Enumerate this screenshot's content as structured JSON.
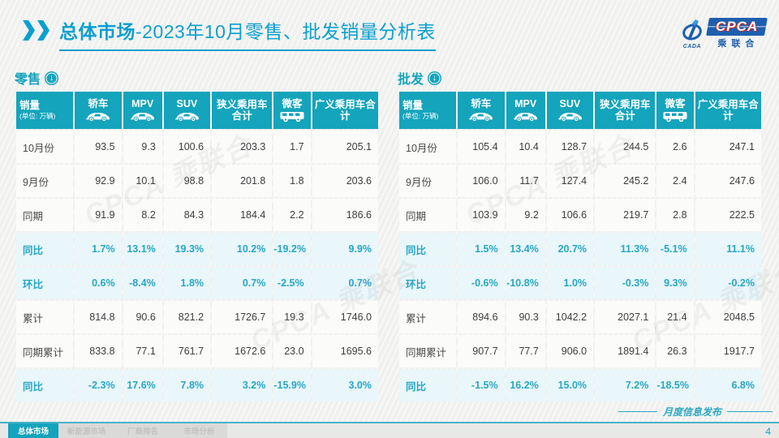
{
  "header": {
    "title_bold": "总体市场",
    "title_rest": "-2023年10月零售、批发销量分析表",
    "logo": {
      "cpca": "CPCA",
      "cada": "CADA",
      "sub": "乘联合"
    }
  },
  "watermark": "CPCA 乘联合",
  "chart_data": [
    {
      "type": "table",
      "title": "零售",
      "unit_note": "(单位: 万辆)",
      "columns": [
        {
          "label": "销量",
          "note": "(单位: 万辆)"
        },
        {
          "label": "轿车",
          "icon": "sedan"
        },
        {
          "label": "MPV",
          "icon": "mpv"
        },
        {
          "label": "SUV",
          "icon": "suv"
        },
        {
          "label": "狭义乘用车合计"
        },
        {
          "label": "微客",
          "icon": "van"
        },
        {
          "label": "广义乘用车合计"
        }
      ],
      "rows": [
        {
          "label": "10月份",
          "type": "data",
          "values": [
            "93.5",
            "9.3",
            "100.6",
            "203.3",
            "1.7",
            "205.1"
          ]
        },
        {
          "label": "9月份",
          "type": "data",
          "values": [
            "92.9",
            "10.1",
            "98.8",
            "201.8",
            "1.8",
            "203.6"
          ]
        },
        {
          "label": "同期",
          "type": "data",
          "values": [
            "91.9",
            "8.2",
            "84.3",
            "184.4",
            "2.2",
            "186.6"
          ]
        },
        {
          "label": "同比",
          "type": "pct",
          "values": [
            "1.7%",
            "13.1%",
            "19.3%",
            "10.2%",
            "-19.2%",
            "9.9%"
          ]
        },
        {
          "label": "环比",
          "type": "pct",
          "values": [
            "0.6%",
            "-8.4%",
            "1.8%",
            "0.7%",
            "-2.5%",
            "0.7%"
          ]
        },
        {
          "label": "累计",
          "type": "data",
          "values": [
            "814.8",
            "90.6",
            "821.2",
            "1726.7",
            "19.3",
            "1746.0"
          ]
        },
        {
          "label": "同期累计",
          "type": "data",
          "values": [
            "833.8",
            "77.1",
            "761.7",
            "1672.6",
            "23.0",
            "1695.6"
          ]
        },
        {
          "label": "同比",
          "type": "pct",
          "values": [
            "-2.3%",
            "17.6%",
            "7.8%",
            "3.2%",
            "-15.9%",
            "3.0%"
          ]
        }
      ]
    },
    {
      "type": "table",
      "title": "批发",
      "unit_note": "(单位: 万辆)",
      "columns": [
        {
          "label": "销量",
          "note": "(单位: 万辆)"
        },
        {
          "label": "轿车",
          "icon": "sedan"
        },
        {
          "label": "MPV",
          "icon": "mpv"
        },
        {
          "label": "SUV",
          "icon": "suv"
        },
        {
          "label": "狭义乘用车合计"
        },
        {
          "label": "微客",
          "icon": "van"
        },
        {
          "label": "广义乘用车合计"
        }
      ],
      "rows": [
        {
          "label": "10月份",
          "type": "data",
          "values": [
            "105.4",
            "10.4",
            "128.7",
            "244.5",
            "2.6",
            "247.1"
          ]
        },
        {
          "label": "9月份",
          "type": "data",
          "values": [
            "106.0",
            "11.7",
            "127.4",
            "245.2",
            "2.4",
            "247.6"
          ]
        },
        {
          "label": "同期",
          "type": "data",
          "values": [
            "103.9",
            "9.2",
            "106.6",
            "219.7",
            "2.8",
            "222.5"
          ]
        },
        {
          "label": "同比",
          "type": "pct",
          "values": [
            "1.5%",
            "13.4%",
            "20.7%",
            "11.3%",
            "-5.1%",
            "11.1%"
          ]
        },
        {
          "label": "环比",
          "type": "pct",
          "values": [
            "-0.6%",
            "-10.8%",
            "1.0%",
            "-0.3%",
            "9.3%",
            "-0.2%"
          ]
        },
        {
          "label": "累计",
          "type": "data",
          "values": [
            "894.6",
            "90.3",
            "1042.2",
            "2027.1",
            "21.4",
            "2048.5"
          ]
        },
        {
          "label": "同期累计",
          "type": "data",
          "values": [
            "907.7",
            "77.7",
            "906.0",
            "1891.4",
            "26.3",
            "1917.7"
          ]
        },
        {
          "label": "同比",
          "type": "pct",
          "values": [
            "-1.5%",
            "16.2%",
            "15.0%",
            "7.2%",
            "-18.5%",
            "6.8%"
          ]
        }
      ]
    }
  ],
  "footer": {
    "tabs": [
      {
        "label": "总体市场",
        "active": true
      },
      {
        "label": "新能源市场",
        "active": false
      },
      {
        "label": "厂商排名",
        "active": false
      },
      {
        "label": "市场分析",
        "active": false
      }
    ],
    "publish": "月度信息发布",
    "page": "4"
  },
  "colors": {
    "accent_teal": "#14a4bc",
    "title_cyan": "#0b9fd0",
    "pct_text": "#27a7c5",
    "logo_blue": "#1d5fae"
  }
}
